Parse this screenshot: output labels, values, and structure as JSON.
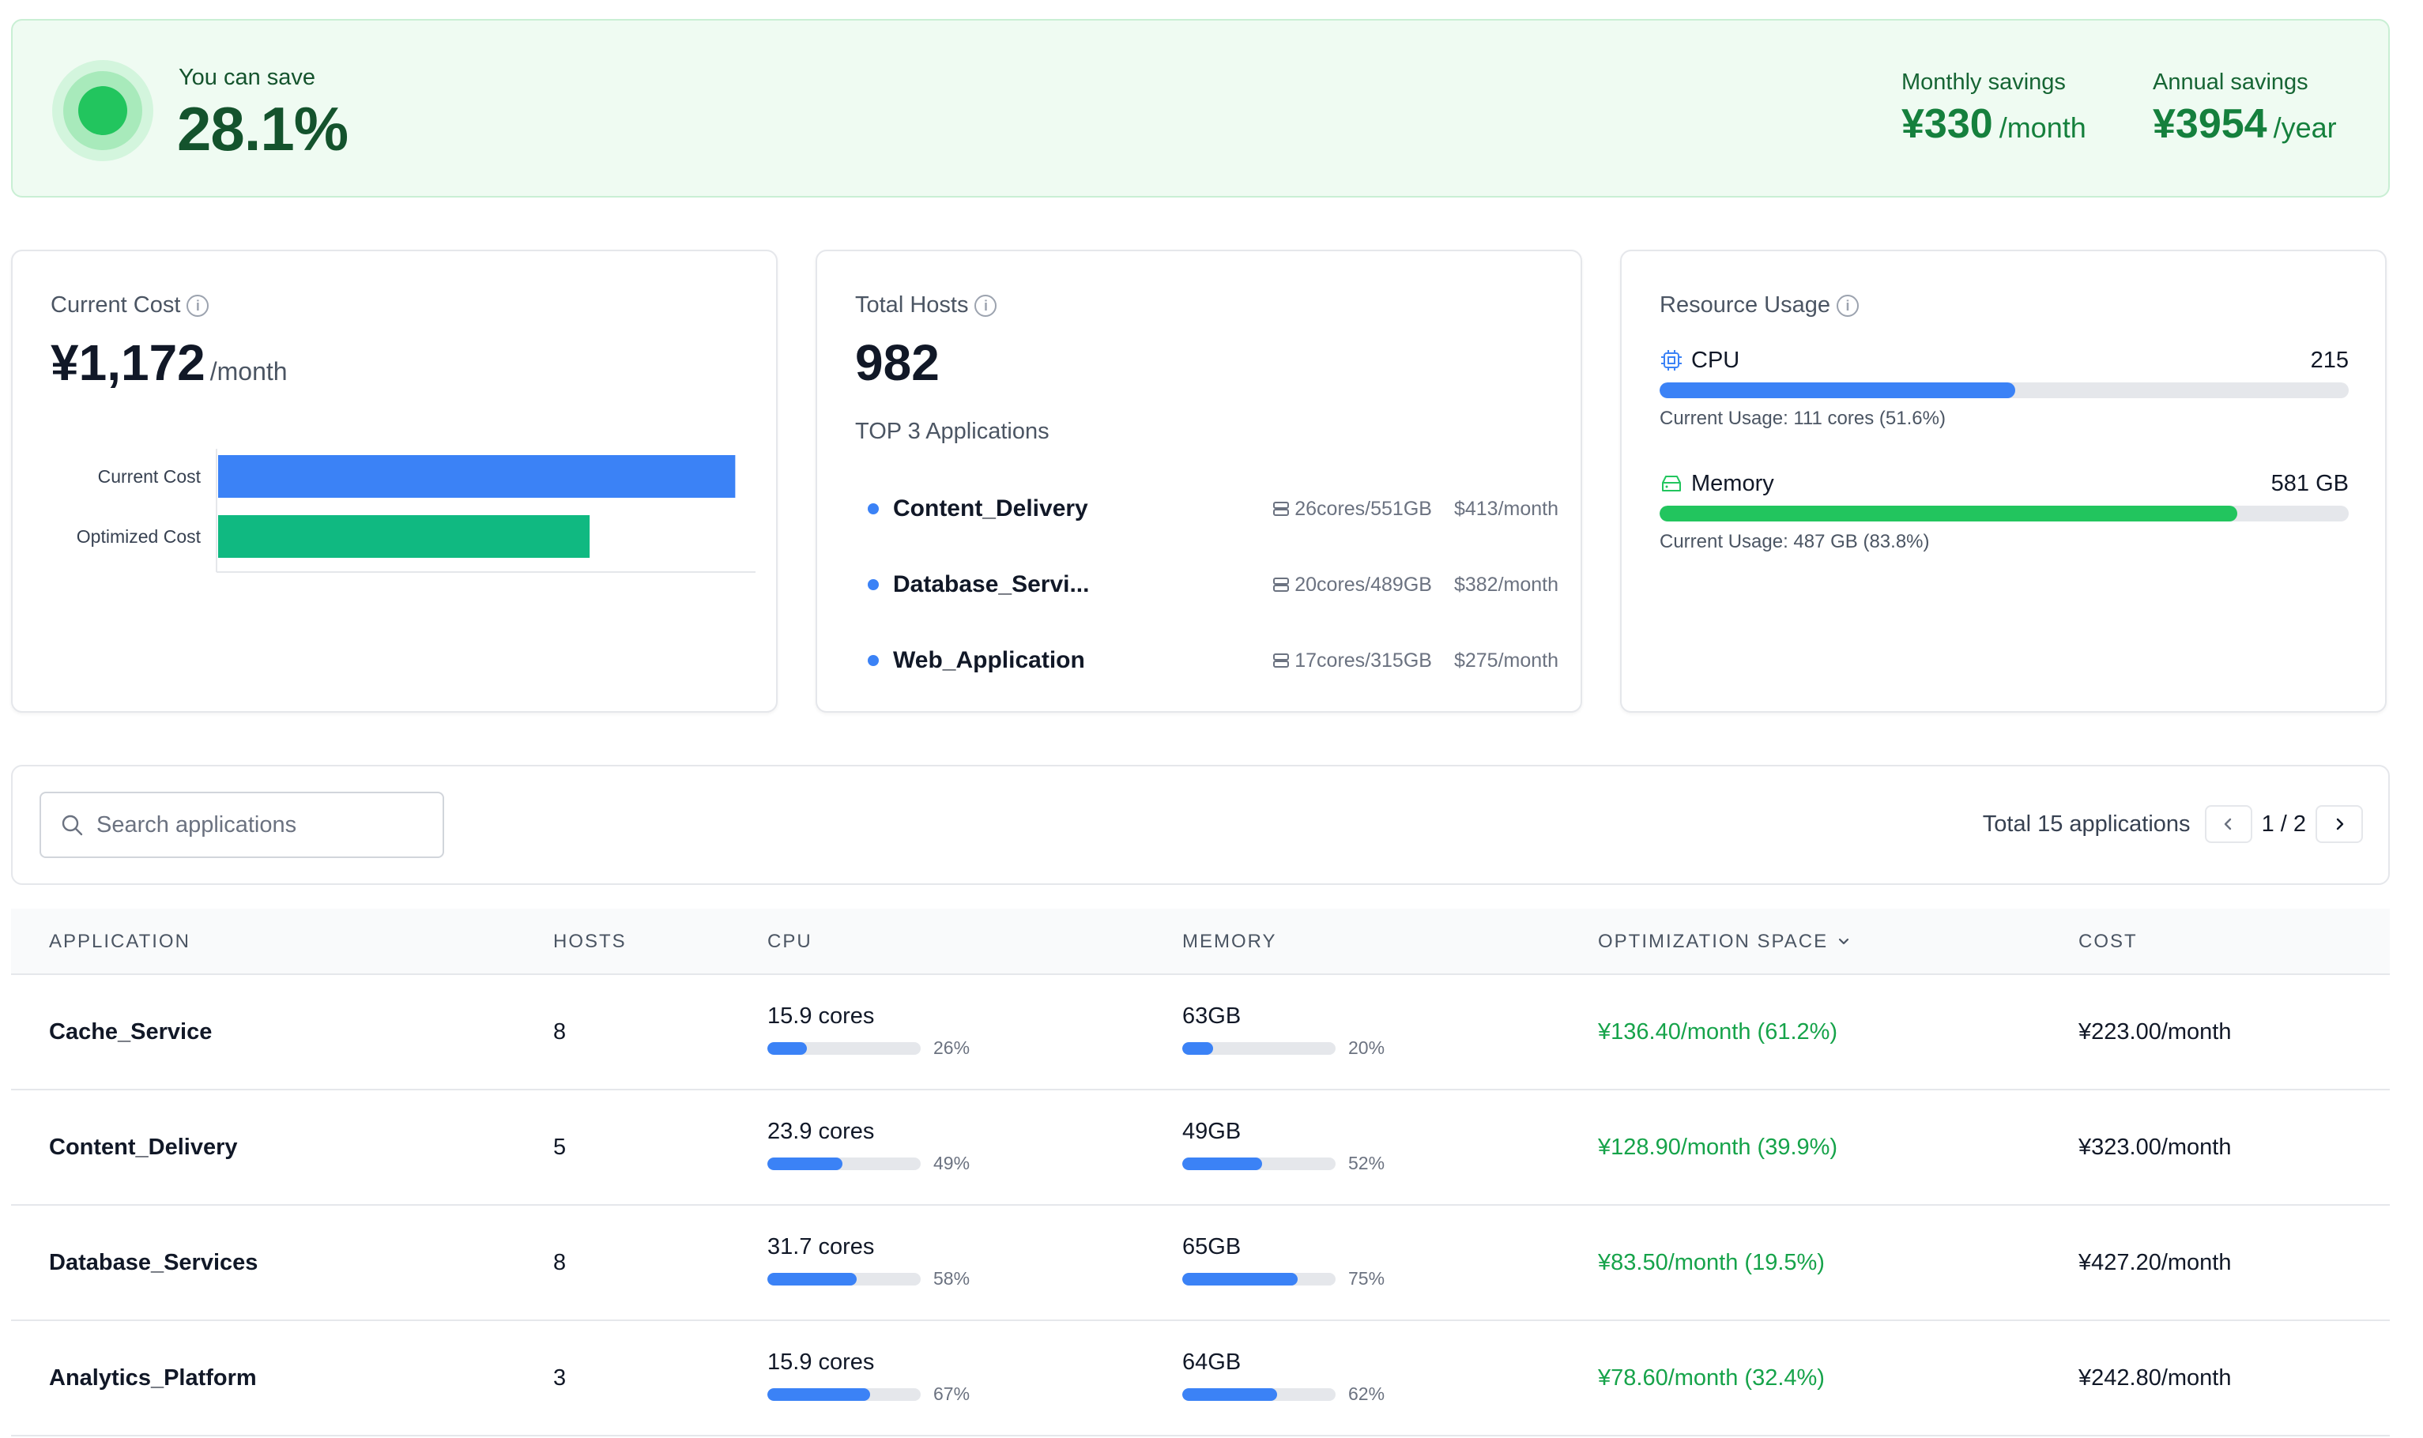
{
  "banner": {
    "label": "You can save",
    "value": "28.1%",
    "monthly": {
      "label": "Monthly savings",
      "amount": "¥330",
      "unit": "/month"
    },
    "annual": {
      "label": "Annual savings",
      "amount": "¥3954",
      "unit": "/year"
    }
  },
  "current_cost": {
    "title": "Current Cost",
    "value": "¥1,172",
    "unit": "/month"
  },
  "chart_data": {
    "type": "bar",
    "orientation": "horizontal",
    "categories": [
      "Current Cost",
      "Optimized Cost"
    ],
    "values": [
      1172,
      842
    ],
    "colors": [
      "#3b82f6",
      "#10b981"
    ],
    "xlim": [
      0,
      1200
    ],
    "grid": false,
    "title": "",
    "xlabel": "",
    "ylabel": ""
  },
  "total_hosts": {
    "title": "Total Hosts",
    "value": "982",
    "top_title": "TOP 3 Applications",
    "top_apps": [
      {
        "name": "Content_Delivery",
        "resources": "26cores/551GB",
        "price": "$413/month"
      },
      {
        "name": "Database_Servi...",
        "resources": "20cores/489GB",
        "price": "$382/month"
      },
      {
        "name": "Web_Application",
        "resources": "17cores/315GB",
        "price": "$275/month"
      }
    ]
  },
  "resource_usage": {
    "title": "Resource Usage",
    "cpu": {
      "name": "CPU",
      "total": "215",
      "usage": "Current Usage: 111 cores (51.6%)",
      "percent": 51.6,
      "color": "#3b82f6"
    },
    "memory": {
      "name": "Memory",
      "total": "581 GB",
      "usage": "Current Usage: 487 GB (83.8%)",
      "percent": 83.8,
      "color": "#22c55e"
    }
  },
  "toolbar": {
    "search_placeholder": "Search applications",
    "total": "Total 15 applications",
    "pages": "1 / 2"
  },
  "table": {
    "headers": {
      "application": "APPLICATION",
      "hosts": "HOSTS",
      "cpu": "CPU",
      "memory": "MEMORY",
      "optimization": "OPTIMIZATION SPACE",
      "cost": "COST"
    },
    "rows": [
      {
        "application": "Cache_Service",
        "hosts": "8",
        "cpu": "15.9 cores",
        "cpu_pct": "26%",
        "cpu_value": 26,
        "memory": "63GB",
        "mem_pct": "20%",
        "mem_value": 20,
        "optimization": "¥136.40/month (61.2%)",
        "cost": "¥223.00/month"
      },
      {
        "application": "Content_Delivery",
        "hosts": "5",
        "cpu": "23.9 cores",
        "cpu_pct": "49%",
        "cpu_value": 49,
        "memory": "49GB",
        "mem_pct": "52%",
        "mem_value": 52,
        "optimization": "¥128.90/month (39.9%)",
        "cost": "¥323.00/month"
      },
      {
        "application": "Database_Services",
        "hosts": "8",
        "cpu": "31.7 cores",
        "cpu_pct": "58%",
        "cpu_value": 58,
        "memory": "65GB",
        "mem_pct": "75%",
        "mem_value": 75,
        "optimization": "¥83.50/month (19.5%)",
        "cost": "¥427.20/month"
      },
      {
        "application": "Analytics_Platform",
        "hosts": "3",
        "cpu": "15.9 cores",
        "cpu_pct": "67%",
        "cpu_value": 67,
        "memory": "64GB",
        "mem_pct": "62%",
        "mem_value": 62,
        "optimization": "¥78.60/month (32.4%)",
        "cost": "¥242.80/month"
      }
    ]
  }
}
